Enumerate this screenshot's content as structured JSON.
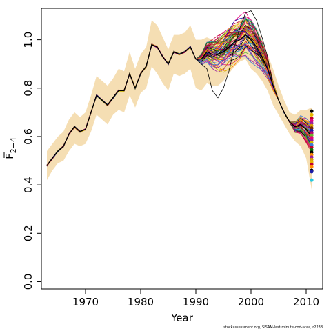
{
  "chart_data": {
    "type": "line",
    "title": "",
    "xlabel": "Year",
    "ylabel": "F",
    "ylabel_subscript": "2−4",
    "xlim": [
      1962,
      2013
    ],
    "ylim": [
      -0.03,
      1.13
    ],
    "x_ticks": [
      1970,
      1980,
      1990,
      2000,
      2010
    ],
    "x_tick_labels": [
      "1970",
      "1980",
      "1990",
      "2000",
      "2010"
    ],
    "y_ticks": [
      0.0,
      0.2,
      0.4,
      0.6,
      0.8,
      1.0
    ],
    "y_tick_labels": [
      "0.0",
      "0.2",
      "0.4",
      "0.6",
      "0.8",
      "1.0"
    ],
    "grid": false,
    "legend": "none",
    "band_color": "#f5deb3",
    "x": [
      1963,
      1964,
      1965,
      1966,
      1967,
      1968,
      1969,
      1970,
      1971,
      1972,
      1973,
      1974,
      1975,
      1976,
      1977,
      1978,
      1979,
      1980,
      1981,
      1982,
      1983,
      1984,
      1985,
      1986,
      1987,
      1988,
      1989,
      1990,
      1991,
      1992,
      1993,
      1994,
      1995,
      1996,
      1997,
      1998,
      1999,
      2000,
      2001,
      2002,
      2003,
      2004,
      2005,
      2006,
      2007,
      2008,
      2009,
      2010,
      2011
    ],
    "estimate": [
      0.48,
      0.51,
      0.54,
      0.56,
      0.61,
      0.64,
      0.62,
      0.63,
      0.7,
      0.77,
      0.75,
      0.73,
      0.76,
      0.79,
      0.79,
      0.86,
      0.8,
      0.86,
      0.89,
      0.98,
      0.97,
      0.93,
      0.9,
      0.95,
      0.94,
      0.95,
      0.97,
      0.92,
      0.92,
      0.95,
      0.94,
      0.94,
      0.95,
      0.97,
      0.99,
      1.0,
      1.02,
      1.0,
      0.97,
      0.93,
      0.88,
      0.81,
      0.75,
      0.7,
      0.66,
      0.64,
      0.65,
      0.63,
      0.6
    ],
    "lower": [
      0.42,
      0.46,
      0.49,
      0.5,
      0.54,
      0.57,
      0.56,
      0.57,
      0.62,
      0.69,
      0.67,
      0.65,
      0.69,
      0.71,
      0.7,
      0.77,
      0.72,
      0.78,
      0.8,
      0.89,
      0.86,
      0.82,
      0.79,
      0.86,
      0.85,
      0.86,
      0.88,
      0.8,
      0.79,
      0.82,
      0.81,
      0.81,
      0.83,
      0.86,
      0.89,
      0.91,
      0.92,
      0.88,
      0.86,
      0.83,
      0.79,
      0.73,
      0.69,
      0.65,
      0.61,
      0.58,
      0.56,
      0.51,
      0.38
    ],
    "upper": [
      0.54,
      0.57,
      0.6,
      0.62,
      0.67,
      0.7,
      0.68,
      0.7,
      0.77,
      0.85,
      0.83,
      0.81,
      0.84,
      0.88,
      0.87,
      0.95,
      0.88,
      0.94,
      0.97,
      1.08,
      1.06,
      1.01,
      0.96,
      1.02,
      1.02,
      1.03,
      1.06,
      1.0,
      1.0,
      1.01,
      1.0,
      1.0,
      1.02,
      1.04,
      1.06,
      1.08,
      1.1,
      1.08,
      1.05,
      1.0,
      0.94,
      0.88,
      0.81,
      0.75,
      0.7,
      0.69,
      0.71,
      0.71,
      0.72
    ],
    "series_colors": [
      "#000000",
      "#e6007e",
      "#1a1aa6",
      "#d4b800",
      "#26a5c9",
      "#0a7a0a",
      "#9b1d9b",
      "#d9a000",
      "#c00030",
      "#6bb52a",
      "#ff8c00",
      "#7a2a00",
      "#3a7bd5",
      "#b8006b"
    ],
    "terminal_values": [
      0.705,
      0.69,
      0.675,
      0.665,
      0.655,
      0.645,
      0.635,
      0.625,
      0.615,
      0.605,
      0.595,
      0.585,
      0.575,
      0.565,
      0.555,
      0.545,
      0.535,
      0.525,
      0.515,
      0.505,
      0.495,
      0.485,
      0.475,
      0.46,
      0.455,
      0.42
    ],
    "terminal_colors": [
      "#000000",
      "#e6b800",
      "#c00030",
      "#e6007e",
      "#9b1d9b",
      "#d9a000",
      "#7a2a00",
      "#1a1aa6",
      "#b8006b",
      "#6bb52a",
      "#e6007e",
      "#9b1d9b",
      "#d4b800",
      "#3a7bd5",
      "#c00030",
      "#0a7a0a",
      "#000000",
      "#ff8c00",
      "#9b1d9b",
      "#d9a000",
      "#e6b800",
      "#c00030",
      "#ff8c00",
      "#000000",
      "#1a1aa6",
      "#26c9e0"
    ]
  },
  "footer": "stockassessment.org, SISAM-last-minute-cod-scaa, r2238"
}
